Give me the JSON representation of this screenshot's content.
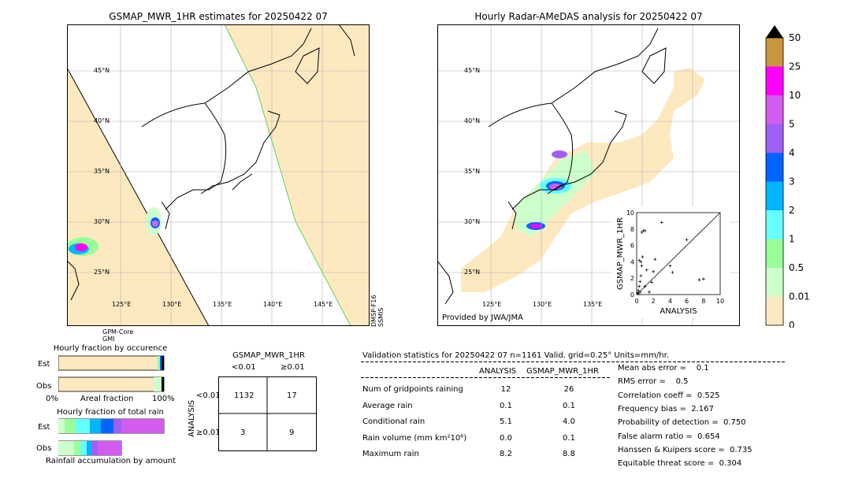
{
  "left_map": {
    "title": "GSMAP_MWR_1HR estimates for 20250422 07",
    "lat_labels": [
      "45°N",
      "40°N",
      "35°N",
      "30°N",
      "25°N"
    ],
    "lon_labels": [
      "125°E",
      "130°E",
      "135°E",
      "140°E",
      "145°E"
    ],
    "satellite_left": "GPM-Core\nGMI",
    "satellite_right": "DMSP-F16\nSSMIS"
  },
  "right_map": {
    "title": "Hourly Radar-AMeDAS analysis for 20250422 07",
    "lat_labels": [
      "45°N",
      "40°N",
      "35°N",
      "30°N",
      "25°N"
    ],
    "lon_labels": [
      "125°E",
      "130°E",
      "135°E"
    ],
    "credit": "Provided by JWA/JMA"
  },
  "colorbar": {
    "labels": [
      "50",
      "25",
      "10",
      "5",
      "4",
      "3",
      "2",
      "1",
      "0.5",
      "0.01",
      "0"
    ],
    "colors": [
      "#c8963c",
      "#ff00ff",
      "#d25cf0",
      "#9f5ff5",
      "#0064ff",
      "#00b4ff",
      "#66ffff",
      "#99ff99",
      "#ccffcc",
      "#fde9c0"
    ]
  },
  "occurrence": {
    "title": "Hourly fraction by occurence",
    "row_est": "Est",
    "row_obs": "Obs",
    "axis_left": "0%",
    "axis_mid": "Areal fraction",
    "axis_right": "100%"
  },
  "total_rain": {
    "title": "Hourly fraction of total rain",
    "row_est": "Est",
    "row_obs": "Obs",
    "footer": "Rainfall accumulation by amount"
  },
  "contingency": {
    "title": "GSMAP_MWR_1HR",
    "col_lt": "<0.01",
    "col_ge": "≥0.01",
    "row_axis": "ANALYSIS",
    "row_lt": "<0.01",
    "row_ge": "≥0.01",
    "cells": [
      "1132",
      "17",
      "3",
      "9"
    ]
  },
  "validation": {
    "header": "Validation statistics for 20250422 07  n=1161 Valid. grid=0.25° Units=mm/hr.",
    "col_analysis": "ANALYSIS",
    "col_gsmap": "GSMAP_MWR_1HR",
    "rows": [
      {
        "label": "Num of gridpoints raining",
        "analysis": "12",
        "gsmap": "26"
      },
      {
        "label": "Average rain",
        "analysis": "0.1",
        "gsmap": "0.1"
      },
      {
        "label": "Conditional rain",
        "analysis": "5.1",
        "gsmap": "4.0"
      },
      {
        "label": "Rain volume (mm km²10⁶)",
        "analysis": "0.0",
        "gsmap": "0.1"
      },
      {
        "label": "Maximum rain",
        "analysis": "8.2",
        "gsmap": "8.8"
      }
    ],
    "scores": [
      "Mean abs error =    0.1",
      "RMS error =    0.5",
      "Correlation coeff =  0.525",
      "Frequency bias =  2.167",
      "Probability of detection =  0.750",
      "False alarm ratio =  0.654",
      "Hanssen & Kuipers score =  0.735",
      "Equitable threat score =  0.304"
    ]
  },
  "chart_data": {
    "type": "scatter",
    "xlabel": "ANALYSIS",
    "ylabel": "GSMAP_MWR_1HR",
    "xlim": [
      0,
      10
    ],
    "ylim": [
      0,
      10
    ],
    "ticks": [
      "0",
      "2",
      "4",
      "6",
      "8",
      "10"
    ],
    "points": [
      [
        0.1,
        0.2
      ],
      [
        0.2,
        0.5
      ],
      [
        0.3,
        1.0
      ],
      [
        0.4,
        1.6
      ],
      [
        0.5,
        2.3
      ],
      [
        0.6,
        3.5
      ],
      [
        0.3,
        4.2
      ],
      [
        0.5,
        4.0
      ],
      [
        0.7,
        4.6
      ],
      [
        0.8,
        7.8
      ],
      [
        1.0,
        7.8
      ],
      [
        0.6,
        7.6
      ],
      [
        1.2,
        3.0
      ],
      [
        1.5,
        0.3
      ],
      [
        1.8,
        1.5
      ],
      [
        2.0,
        2.8
      ],
      [
        1.0,
        1.0
      ],
      [
        3.0,
        8.8
      ],
      [
        2.2,
        4.3
      ],
      [
        4.0,
        3.5
      ],
      [
        4.3,
        2.7
      ],
      [
        6.0,
        6.7
      ],
      [
        7.5,
        1.8
      ],
      [
        8.0,
        1.9
      ],
      [
        0.2,
        0.1
      ],
      [
        0.4,
        0.3
      ]
    ]
  }
}
